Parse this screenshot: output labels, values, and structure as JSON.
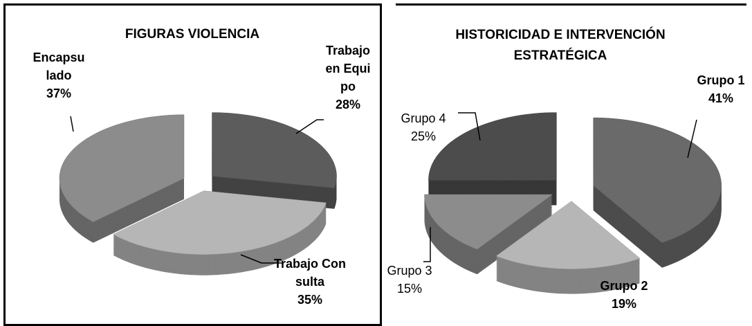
{
  "chart_data": [
    {
      "type": "pie",
      "title": "FIGURAS VIOLENCIA",
      "categories": [
        "Trabajo en Equipo",
        "Trabajo Consulta",
        "Encapsulado"
      ],
      "values": [
        28,
        35,
        37
      ],
      "value_labels": [
        "28%",
        "35%",
        "37%"
      ],
      "colors": [
        "#5c5c5c",
        "#b6b6b6",
        "#8c8c8c"
      ]
    },
    {
      "type": "pie",
      "title": "HISTORICIDAD E INTERVENCIÓN ESTRATÉGICA",
      "categories": [
        "Grupo 1",
        "Grupo 2",
        "Grupo 3",
        "Grupo 4"
      ],
      "values": [
        41,
        19,
        15,
        25
      ],
      "value_labels": [
        "41%",
        "19%",
        "15%",
        "25%"
      ],
      "colors": [
        "#6a6a6a",
        "#b6b6b6",
        "#8c8c8c",
        "#4c4c4c"
      ]
    }
  ]
}
